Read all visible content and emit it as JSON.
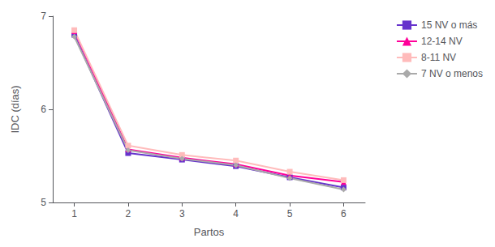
{
  "chart_data": {
    "type": "line",
    "x": [
      1,
      2,
      3,
      4,
      5,
      6
    ],
    "series": [
      {
        "name": "15 NV o más",
        "color": "#6633cc",
        "marker": "square",
        "values": [
          6.8,
          5.53,
          5.46,
          5.39,
          5.27,
          5.16
        ]
      },
      {
        "name": "12-14 NV",
        "color": "#ff0099",
        "marker": "triangle",
        "values": [
          6.84,
          5.57,
          5.48,
          5.41,
          5.29,
          5.22
        ]
      },
      {
        "name": "8-11 NV",
        "color": "#ffbbbb",
        "marker": "square",
        "values": [
          6.85,
          5.61,
          5.51,
          5.45,
          5.33,
          5.24
        ]
      },
      {
        "name": "7 NV o menos",
        "color": "#aaaaaa",
        "marker": "diamond",
        "values": [
          6.78,
          5.56,
          5.47,
          5.4,
          5.26,
          5.14
        ]
      }
    ],
    "xlabel": "Partos",
    "ylabel": "IDC (días)",
    "xlim": [
      0.6,
      6.4
    ],
    "xticks": [
      1,
      2,
      3,
      4,
      5,
      6
    ],
    "ylim": [
      5.0,
      7.0
    ],
    "yticks": [
      5,
      6,
      7
    ],
    "grid": false,
    "legend": "right"
  }
}
